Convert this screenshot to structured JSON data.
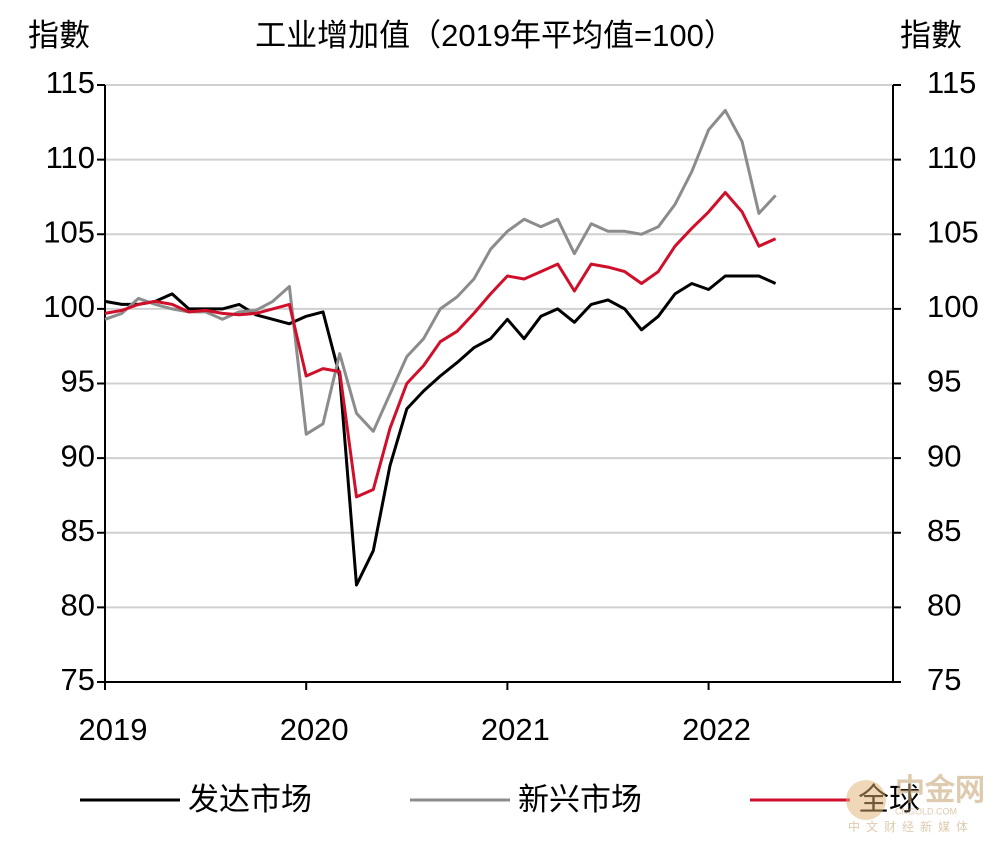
{
  "chart_data": {
    "type": "line",
    "title": "工业增加值（2019年平均值=100）",
    "ylabel": "指數",
    "y2label": "指數",
    "categories": [
      "2019",
      null,
      null,
      null,
      null,
      null,
      null,
      null,
      null,
      null,
      null,
      null,
      "2020",
      null,
      null,
      null,
      null,
      null,
      null,
      null,
      null,
      null,
      null,
      null,
      "2021",
      null,
      null,
      null,
      null,
      null,
      null,
      null,
      null,
      null,
      null,
      null,
      "2022",
      null,
      null,
      null,
      null,
      null,
      null,
      null,
      null,
      null,
      null,
      null
    ],
    "series": [
      {
        "name": "发达市场",
        "color": "#000000",
        "values": [
          100.5,
          100.3,
          100.3,
          100.5,
          101.0,
          100.0,
          100.0,
          100.0,
          100.3,
          99.6,
          99.3,
          99.0,
          99.5,
          99.8,
          95.5,
          81.5,
          83.8,
          89.5,
          93.3,
          94.5,
          95.5,
          96.4,
          97.4,
          98.0,
          99.3,
          98.0,
          99.5,
          100.0,
          99.1,
          100.3,
          100.6,
          100.0,
          98.6,
          99.5,
          101.0,
          101.7,
          101.3,
          102.2,
          102.2,
          102.2,
          101.7,
          null,
          null,
          null,
          null,
          null,
          null,
          null
        ]
      },
      {
        "name": "新兴市场",
        "color": "#8c8c8c",
        "values": [
          99.3,
          99.7,
          100.7,
          100.3,
          100.0,
          99.8,
          99.8,
          99.3,
          99.8,
          99.9,
          100.5,
          101.5,
          91.6,
          92.3,
          97.0,
          93.0,
          91.8,
          94.3,
          96.8,
          98.0,
          100.0,
          100.8,
          102.0,
          104.0,
          105.2,
          106.0,
          105.5,
          106.0,
          103.7,
          105.7,
          105.2,
          105.2,
          105.0,
          105.5,
          107.0,
          109.2,
          112.0,
          113.3,
          111.2,
          106.4,
          107.6,
          null,
          null,
          null,
          null,
          null,
          null,
          null
        ]
      },
      {
        "name": "全球",
        "color": "#d0102a",
        "values": [
          99.7,
          99.9,
          100.3,
          100.5,
          100.3,
          99.8,
          99.9,
          99.7,
          99.6,
          99.7,
          100.0,
          100.3,
          95.5,
          96.0,
          95.8,
          87.4,
          87.9,
          92.0,
          95.0,
          96.2,
          97.8,
          98.5,
          99.7,
          101.0,
          102.2,
          102.0,
          102.5,
          103.0,
          101.2,
          103.0,
          102.8,
          102.5,
          101.7,
          102.5,
          104.2,
          105.4,
          106.5,
          107.8,
          106.5,
          104.2,
          104.7,
          null,
          null,
          null,
          null,
          null,
          null,
          null
        ]
      }
    ],
    "ylim": [
      75,
      115
    ],
    "yticks": [
      75,
      80,
      85,
      90,
      95,
      100,
      105,
      110,
      115
    ],
    "y2lim": [
      75,
      115
    ],
    "y2ticks": [
      75,
      80,
      85,
      90,
      95,
      100,
      105,
      110,
      115
    ],
    "grid": true,
    "legend": "bottom"
  },
  "watermark": {
    "name": "中金网",
    "site": "CNGOLD.COM",
    "slogan": "中文财经新媒体"
  }
}
